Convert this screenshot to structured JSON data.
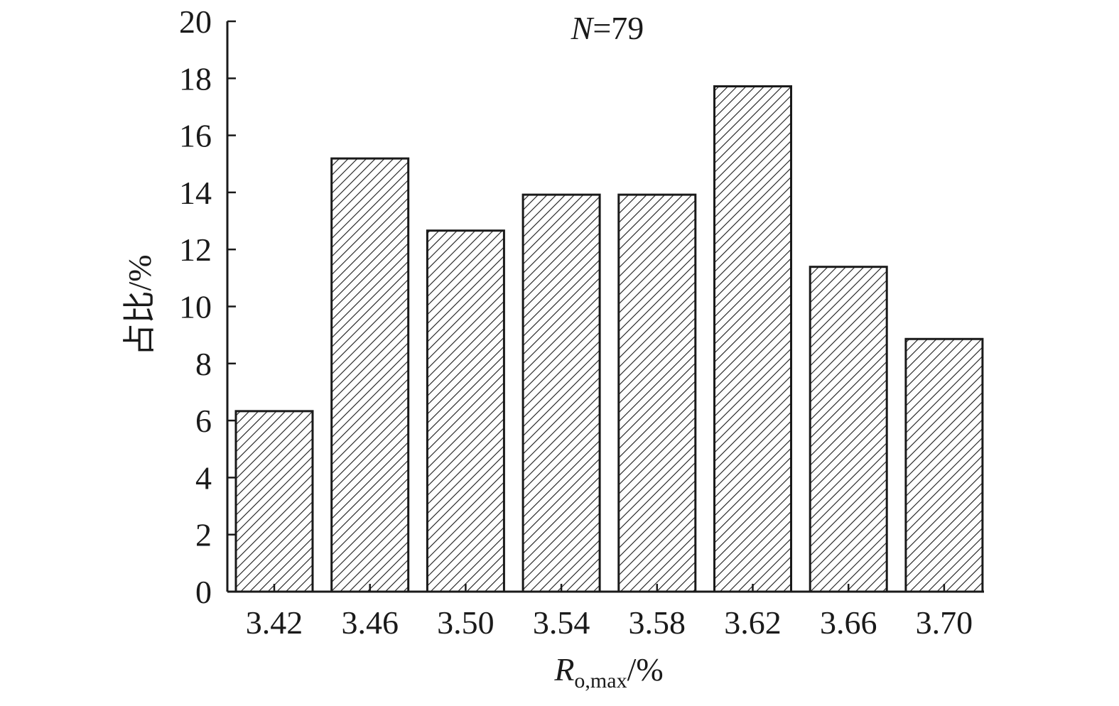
{
  "chart_data": {
    "type": "bar",
    "annotation": {
      "italic_part": "N",
      "rest": "=79"
    },
    "xlabel": {
      "main": "R",
      "subscript": "o,max",
      "suffix": "/%"
    },
    "ylabel": "占比/%",
    "categories": [
      "3.42",
      "3.46",
      "3.50",
      "3.54",
      "3.58",
      "3.62",
      "3.66",
      "3.70"
    ],
    "values": [
      6.33,
      15.19,
      12.66,
      13.92,
      13.92,
      17.72,
      11.39,
      8.86
    ],
    "ylim": [
      0,
      20
    ],
    "yticks": [
      0,
      2,
      4,
      6,
      8,
      10,
      12,
      14,
      16,
      18,
      20
    ],
    "grid": false,
    "legend": "none",
    "bar_fill": "diagonal-hatch",
    "colors": {
      "bar_stroke": "#1a1a1a",
      "hatch": "#1a1a1a",
      "axis": "#1a1a1a",
      "background": "#ffffff"
    }
  }
}
